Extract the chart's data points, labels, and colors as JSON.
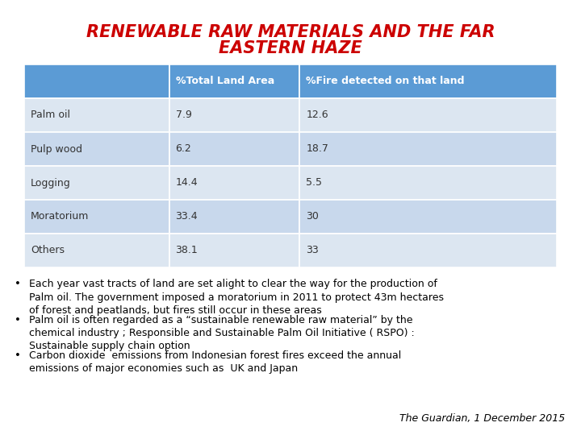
{
  "title_line1": "RENEWABLE RAW MATERIALS AND THE FAR",
  "title_line2": "EASTERN HAZE",
  "title_color": "#cc0000",
  "title_fontsize": 15,
  "header_bg": "#5b9bd5",
  "header_text_color": "#ffffff",
  "row_bg_odd": "#dce6f1",
  "row_bg_even": "#c8d8ec",
  "col_headers": [
    "",
    "%Total Land Area",
    "%Fire detected on that land"
  ],
  "rows": [
    [
      "Palm oil",
      "7.9",
      "12.6"
    ],
    [
      "Pulp wood",
      "6.2",
      "18.7"
    ],
    [
      "Logging",
      "14.4",
      "5.5"
    ],
    [
      "Moratorium",
      "33.4",
      "30"
    ],
    [
      "Others",
      "38.1",
      "33"
    ]
  ],
  "bullet_points": [
    "Each year vast tracts of land are set alight to clear the way for the production of\nPalm oil. The government imposed a moratorium in 2011 to protect 43m hectares\nof forest and peatlands, but fires still occur in these areas",
    "Palm oil is often regarded as a “sustainable renewable raw material” by the\nchemical industry ; Responsible and Sustainable Palm Oil Initiative ( RSPO) :\nSustainable supply chain option",
    "Carbon dioxide  emissions from Indonesian forest fires exceed the annual\nemissions of major economies such as  UK and Japan"
  ],
  "citation": "The Guardian, 1 December 2015",
  "bg_color": "#ffffff"
}
